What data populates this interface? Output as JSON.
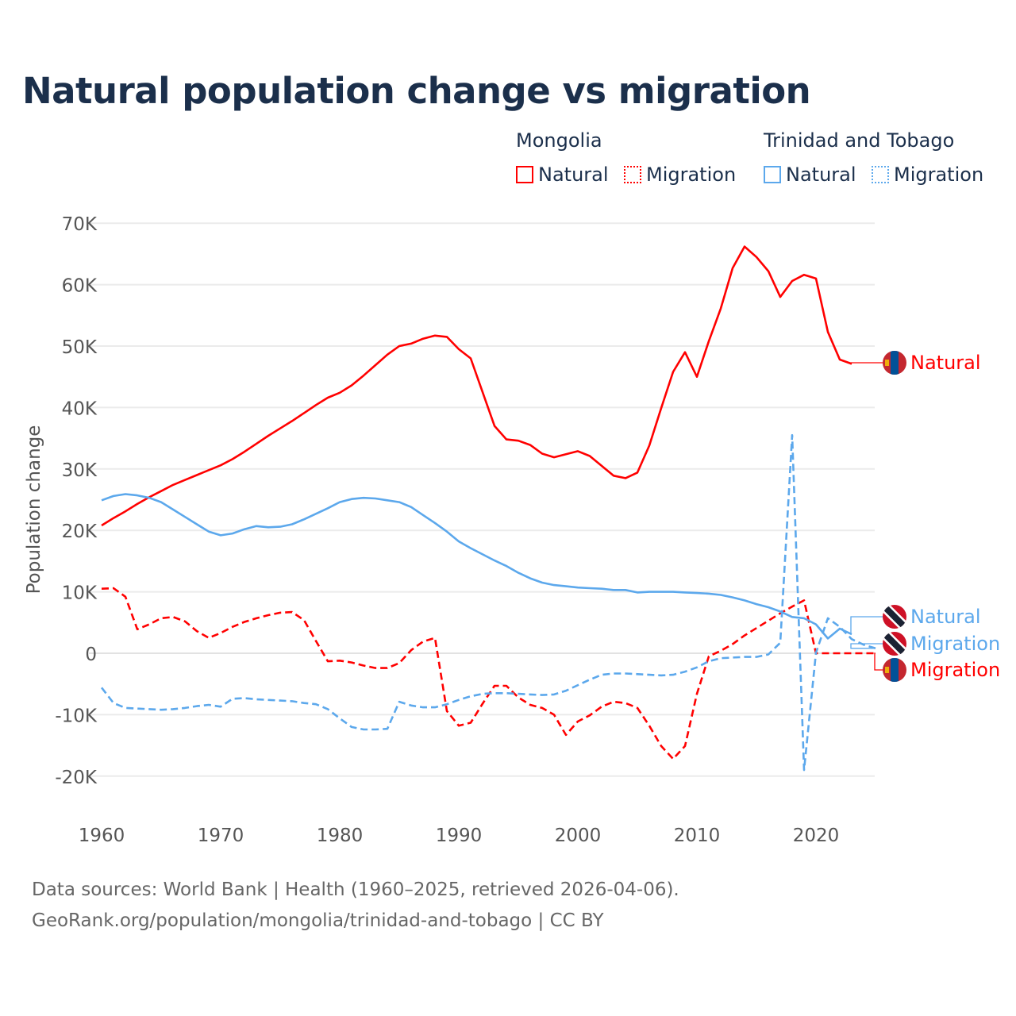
{
  "title": "Natural population change vs migration",
  "legend": {
    "groups": [
      {
        "name": "Mongolia",
        "items": [
          {
            "label": "Natural",
            "style": "solid"
          },
          {
            "label": "Migration",
            "style": "dotted"
          }
        ],
        "color": "#ff0000"
      },
      {
        "name": "Trinidad and Tobago",
        "items": [
          {
            "label": "Natural",
            "style": "solid"
          },
          {
            "label": "Migration",
            "style": "dotted"
          }
        ],
        "color": "#5ca8ec"
      }
    ]
  },
  "footer": {
    "line1": "Data sources: World Bank | Health (1960–2025, retrieved 2026-04-06).",
    "line2": "GeoRank.org/population/mongolia/trinidad-and-tobago | CC BY"
  },
  "chart_data": {
    "type": "line",
    "title": "Natural population change vs migration",
    "xlabel": "",
    "ylabel": "Population change",
    "xlim": [
      1960,
      2025
    ],
    "ylim": [
      -20000,
      70000
    ],
    "x_ticks": [
      1960,
      1970,
      1980,
      1990,
      2000,
      2010,
      2020
    ],
    "x_tick_labels": [
      "1960",
      "1970",
      "1980",
      "1990",
      "2000",
      "2010",
      "2020"
    ],
    "y_ticks": [
      -20000,
      -10000,
      0,
      10000,
      20000,
      30000,
      40000,
      50000,
      60000,
      70000
    ],
    "y_tick_labels": [
      "-20K",
      "-10K",
      "0",
      "10K",
      "20K",
      "30K",
      "40K",
      "50K",
      "60K",
      "70K"
    ],
    "grid": true,
    "legend_position": "top-right",
    "series": [
      {
        "name": "Mongolia Natural",
        "end_label": "Natural",
        "country": "Mongolia",
        "color": "#ff0000",
        "dash": "solid",
        "start_year": 1960,
        "values": [
          20800,
          22000,
          23100,
          24300,
          25400,
          26400,
          27400,
          28200,
          29000,
          29800,
          30600,
          31600,
          32800,
          34100,
          35400,
          36600,
          37800,
          39100,
          40400,
          41600,
          42400,
          43600,
          45200,
          46900,
          48600,
          50000,
          50400,
          51200,
          51700,
          51500,
          49500,
          48000,
          42500,
          37000,
          34800,
          34600,
          33900,
          32500,
          31900,
          32400,
          32900,
          32100,
          30500,
          28900,
          28500,
          29400,
          33800,
          39900,
          45800,
          49000,
          45000,
          50800,
          56100,
          62700,
          66200,
          64500,
          62200,
          58000,
          60600,
          61600,
          61000,
          52300,
          47800,
          47100
        ]
      },
      {
        "name": "Mongolia Migration",
        "end_label": "Migration",
        "country": "Mongolia",
        "color": "#ff0000",
        "dash": "dashed",
        "start_year": 1960,
        "values": [
          10500,
          10600,
          9200,
          3900,
          4700,
          5700,
          5900,
          5200,
          3600,
          2500,
          3300,
          4300,
          5100,
          5700,
          6200,
          6600,
          6700,
          5400,
          2000,
          -1300,
          -1200,
          -1500,
          -2000,
          -2400,
          -2400,
          -1600,
          500,
          1900,
          2500,
          -9400,
          -11800,
          -11300,
          -8200,
          -5300,
          -5300,
          -7200,
          -8400,
          -8900,
          -10000,
          -13300,
          -11100,
          -10100,
          -8700,
          -7900,
          -8100,
          -8900,
          -11800,
          -15100,
          -17200,
          -15100,
          -6600,
          -500,
          400,
          1500,
          2900,
          4100,
          5300,
          6500,
          7600,
          8600,
          0,
          0,
          0,
          0,
          0,
          0
        ]
      },
      {
        "name": "Trinidad and Tobago Natural",
        "end_label": "Natural",
        "country": "Trinidad and Tobago",
        "color": "#5ca8ec",
        "dash": "solid",
        "start_year": 1960,
        "values": [
          24900,
          25600,
          25900,
          25700,
          25300,
          24600,
          23400,
          22200,
          21000,
          19800,
          19200,
          19500,
          20200,
          20700,
          20500,
          20600,
          21000,
          21800,
          22700,
          23600,
          24600,
          25100,
          25300,
          25200,
          24900,
          24600,
          23800,
          22500,
          21200,
          19800,
          18200,
          17100,
          16100,
          15100,
          14200,
          13100,
          12200,
          11500,
          11100,
          10900,
          10700,
          10600,
          10500,
          10300,
          10300,
          9900,
          10000,
          10000,
          10000,
          9900,
          9800,
          9700,
          9500,
          9100,
          8600,
          8000,
          7500,
          6800,
          5900,
          5700,
          4700,
          2400,
          4000,
          3100
        ]
      },
      {
        "name": "Trinidad and Tobago Migration",
        "end_label": "Migration",
        "country": "Trinidad and Tobago",
        "color": "#5ca8ec",
        "dash": "dashed",
        "start_year": 1960,
        "values": [
          -5600,
          -8100,
          -8900,
          -9000,
          -9100,
          -9200,
          -9100,
          -8900,
          -8600,
          -8400,
          -8700,
          -7400,
          -7300,
          -7500,
          -7600,
          -7700,
          -7800,
          -8100,
          -8300,
          -9100,
          -10600,
          -12000,
          -12400,
          -12400,
          -12300,
          -7900,
          -8500,
          -8800,
          -8800,
          -8300,
          -7600,
          -7000,
          -6600,
          -6500,
          -6500,
          -6600,
          -6700,
          -6800,
          -6700,
          -6100,
          -5200,
          -4300,
          -3500,
          -3300,
          -3300,
          -3400,
          -3500,
          -3600,
          -3500,
          -3000,
          -2300,
          -1300,
          -800,
          -700,
          -600,
          -600,
          -200,
          1700,
          35500,
          -19000,
          100,
          5700,
          4300,
          2300,
          1400,
          800
        ]
      }
    ]
  }
}
